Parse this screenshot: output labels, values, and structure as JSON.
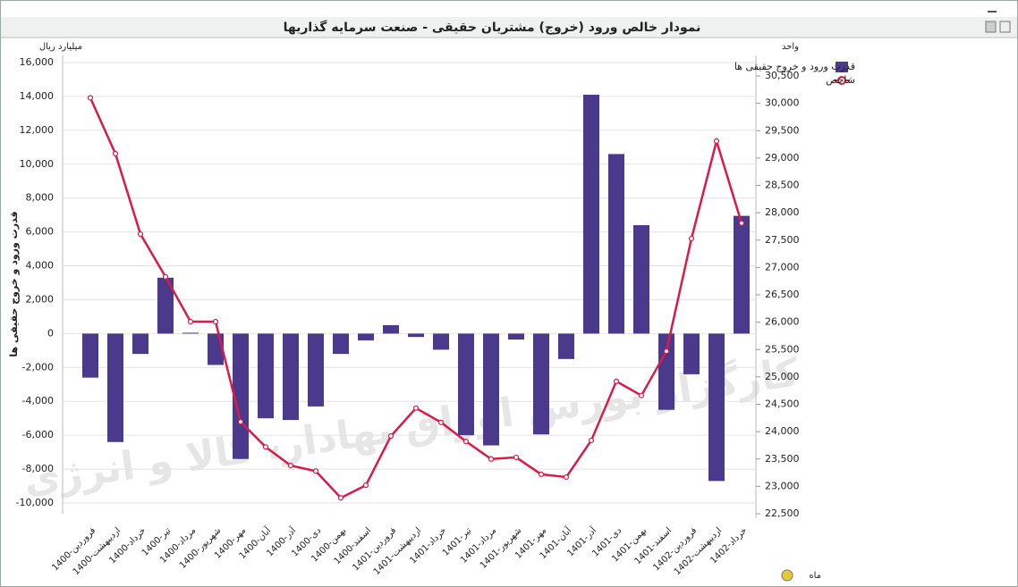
{
  "chart_data": {
    "type": "bar-line",
    "title": "نمودار خالص ورود (خروج) مشتریان حقیقی - صنعت سرمایه گذاریها",
    "y_unit": "میلیارد ریال",
    "y2_unit": "واحد",
    "ylabel": "قدرت ورود و خروج حقیقی ها",
    "xlabel": "ماه",
    "watermark": "کارگزار بورس اوراق بهادار، کالا و انرژی",
    "categories": [
      "1400-فروردین",
      "1400-اردیبهشت",
      "1400-خرداد",
      "1400-تیر",
      "1400-مرداد",
      "1400-شهریور",
      "1400-مهر",
      "1400-آبان",
      "1400-آذر",
      "1400-دی",
      "1400-بهمن",
      "1400-اسفند",
      "1401-فروردین",
      "1401-اردیبهشت",
      "1401-خرداد",
      "1401-تیر",
      "1401-مرداد",
      "1401-شهریور",
      "1401-مهر",
      "1401-آبان",
      "1401-آذر",
      "1401-دی",
      "1401-بهمن",
      "1401-اسفند",
      "1402-فروردین",
      "1402-اردیبهشت",
      "1402-خرداد"
    ],
    "series": [
      {
        "name": "قدرت ورود و خروج حقیقی ها",
        "type": "bar",
        "color": "#4b3a8c",
        "axis": "y",
        "values": [
          -2600,
          -6400,
          -1200,
          3300,
          50,
          -1850,
          -7400,
          -5000,
          -5100,
          -4300,
          -1200,
          -400,
          500,
          -200,
          -950,
          -6000,
          -6600,
          -350,
          -5950,
          -1500,
          14100,
          10600,
          6400,
          -4500,
          -2400,
          -8700,
          6950
        ]
      },
      {
        "name": "شاخص",
        "type": "line",
        "color": "#d81b48",
        "axis": "y2",
        "values": [
          30100,
          29080,
          27610,
          26830,
          26010,
          26010,
          24180,
          23720,
          23380,
          23280,
          22790,
          23020,
          23920,
          24430,
          24170,
          23820,
          23500,
          23530,
          23220,
          23170,
          23840,
          24920,
          24660,
          25470,
          27530,
          29310,
          27810
        ]
      }
    ],
    "ylim": [
      -10000,
      16000
    ],
    "yticks": [
      {
        "value": -10000,
        "label": "-10,000"
      },
      {
        "value": -8000,
        "label": "-8,000"
      },
      {
        "value": -6000,
        "label": "-6,000"
      },
      {
        "value": -4000,
        "label": "-4,000"
      },
      {
        "value": -2000,
        "label": "-2,000"
      },
      0,
      {
        "value": 2000,
        "label": "2,000"
      },
      {
        "value": 4000,
        "label": "4,000"
      },
      {
        "value": 6000,
        "label": "6,000"
      },
      {
        "value": 8000,
        "label": "8,000"
      },
      {
        "value": 10000,
        "label": "10,000"
      },
      {
        "value": 12000,
        "label": "12,000"
      },
      {
        "value": 14000,
        "label": "14,000"
      },
      {
        "value": 16000,
        "label": "16,000"
      }
    ],
    "y2lim": [
      22500,
      30500
    ],
    "y2ticks": [
      {
        "value": 22500,
        "label": "22,500"
      },
      {
        "value": 23000,
        "label": "23,000"
      },
      {
        "value": 23500,
        "label": "23,500"
      },
      {
        "value": 24000,
        "label": "24,000"
      },
      {
        "value": 24500,
        "label": "24,500"
      },
      {
        "value": 25000,
        "label": "25,000"
      },
      {
        "value": 25500,
        "label": "25,500"
      },
      {
        "value": 26000,
        "label": "26,000"
      },
      {
        "value": 26500,
        "label": "26,500"
      },
      {
        "value": 27000,
        "label": "27,000"
      },
      {
        "value": 27500,
        "label": "27,500"
      },
      {
        "value": 28000,
        "label": "28,000"
      },
      {
        "value": 28500,
        "label": "28,500"
      },
      {
        "value": 29000,
        "label": "29,000"
      },
      {
        "value": 29500,
        "label": "29,500"
      },
      {
        "value": 30000,
        "label": "30,000"
      },
      {
        "value": 30500,
        "label": "30,500"
      }
    ],
    "grid": true
  }
}
